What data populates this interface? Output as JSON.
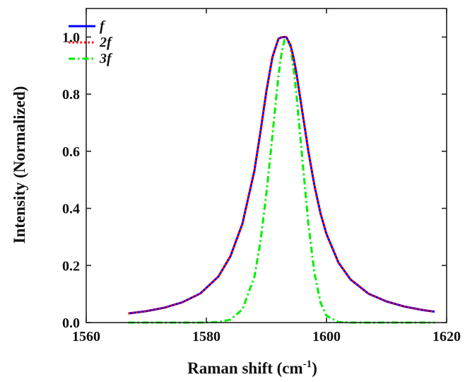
{
  "chart_data": {
    "type": "line",
    "title": "",
    "xlabel": "Raman shift (cm",
    "xlabel_superscript": "-1",
    "xlabel_suffix": ")",
    "ylabel": "Intensity (Normalized)",
    "xlim": [
      1560,
      1620
    ],
    "ylim": [
      0,
      1.1
    ],
    "x_ticks": [
      1560,
      1580,
      1600,
      1620
    ],
    "x_tick_labels": [
      "1560",
      "1580",
      "1600",
      "1620"
    ],
    "y_ticks": [
      0,
      0.2,
      0.4,
      0.6,
      0.8,
      1.0
    ],
    "y_tick_labels": [
      "0.0",
      "0.2",
      "0.4",
      "0.6",
      "0.8",
      "1.0"
    ],
    "grid": false,
    "legend_position": "top-left",
    "x": [
      1567,
      1570,
      1573,
      1576,
      1579,
      1582,
      1584,
      1586,
      1588,
      1589,
      1590,
      1591,
      1592,
      1592.5,
      1593,
      1593.3,
      1594,
      1594.5,
      1595,
      1596,
      1597,
      1598,
      1599,
      1600,
      1602,
      1604,
      1607,
      1610,
      1613,
      1616,
      1618
    ],
    "series": [
      {
        "name": "f",
        "color": "#0000ff",
        "style": "solid",
        "values": [
          0.032,
          0.04,
          0.052,
          0.071,
          0.102,
          0.161,
          0.232,
          0.346,
          0.532,
          0.667,
          0.811,
          0.93,
          0.994,
          0.999,
          1.0,
          1.0,
          0.972,
          0.93,
          0.873,
          0.735,
          0.598,
          0.479,
          0.383,
          0.31,
          0.21,
          0.151,
          0.101,
          0.074,
          0.056,
          0.044,
          0.038
        ]
      },
      {
        "name": "2f",
        "color": "#ff0000",
        "style": "dotted",
        "values": [
          0.032,
          0.04,
          0.052,
          0.071,
          0.102,
          0.161,
          0.232,
          0.346,
          0.532,
          0.667,
          0.811,
          0.93,
          0.994,
          0.999,
          1.0,
          1.0,
          0.972,
          0.93,
          0.873,
          0.735,
          0.598,
          0.479,
          0.383,
          0.31,
          0.21,
          0.151,
          0.101,
          0.074,
          0.056,
          0.044,
          0.038
        ]
      },
      {
        "name": "3f",
        "color": "#00ee00",
        "style": "dashdot",
        "values": [
          0.0,
          0.0,
          0.0,
          0.0,
          0.0,
          0.002,
          0.01,
          0.046,
          0.16,
          0.283,
          0.453,
          0.655,
          0.864,
          0.941,
          0.989,
          1.0,
          0.966,
          0.895,
          0.798,
          0.568,
          0.342,
          0.172,
          0.071,
          0.024,
          0.002,
          0.0,
          0.0,
          0.0,
          0.0,
          0.0,
          0.0
        ]
      }
    ]
  }
}
